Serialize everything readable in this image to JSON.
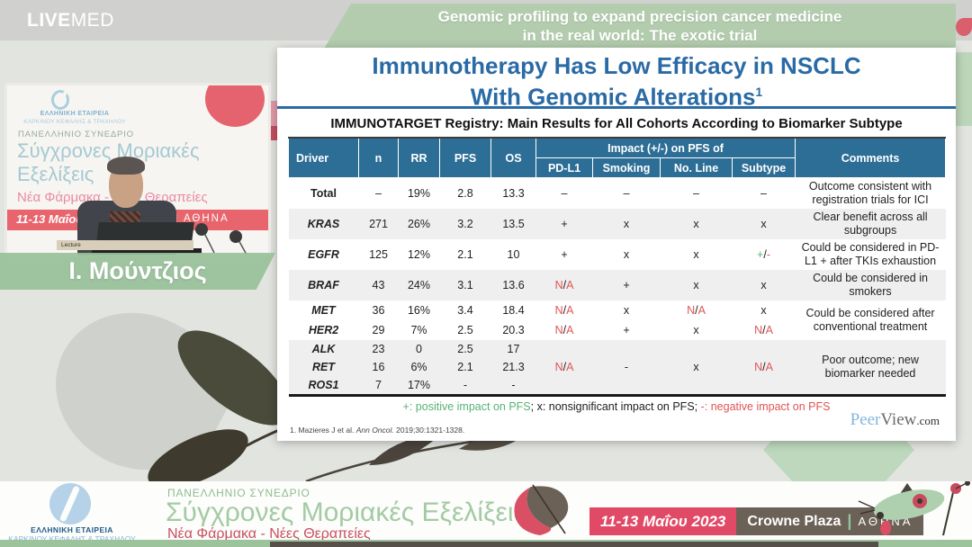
{
  "brand": {
    "live": "LIVE",
    "med": "MED"
  },
  "banner": {
    "line1": "Genomic profiling to expand precision cancer medicine",
    "line2": "in the real world: The exotic trial"
  },
  "video": {
    "speaker_name": "Ι. Μούντζιος",
    "backdrop": {
      "org_line1": "ΕΛΛΗΝΙΚΗ ΕΤΑΙΡΕΙΑ",
      "org_line2": "ΚΑΡΚΙΝΟΥ ΚΕΦΑΛΗΣ & ΤΡΑΧΗΛΟΥ",
      "congress": "ΠΑΝΕΛΛΗΝΙΟ ΣΥΝΕΔΡΙΟ",
      "title_line1": "Σύγχρονες Μοριακές",
      "title_line2": "Εξελίξεις",
      "subtitle": "Νέα Φάρμακα - Νέες Θεραπείες",
      "date": "11-13 Μαΐου 202",
      "divider": "|",
      "city": "ΑΘΗΝΑ",
      "podium_label": "Lecture"
    }
  },
  "slide": {
    "title_line1": "Immunotherapy Has Low Efficacy in NSCLC",
    "title_line2": "With Genomic Alterations",
    "title_sup": "1",
    "table_title": "IMMUNOTARGET Registry: Main Results for All Cohorts According to Biomarker Subtype",
    "table": {
      "col_headers": [
        "Driver",
        "n",
        "RR",
        "PFS",
        "OS"
      ],
      "impact_group_header": "Impact (+/-) on PFS of",
      "impact_headers": [
        "PD-L1",
        "Smoking",
        "No. Line",
        "Subtype"
      ],
      "comments_header": "Comments",
      "rows": [
        {
          "driver": "Total",
          "style": "total",
          "bg": "w",
          "size": "lg",
          "n": "–",
          "rr": "19%",
          "pfs": "2.8",
          "os": "13.3",
          "impact": [
            "–",
            "–",
            "–",
            "–"
          ],
          "comment": "Outcome consistent with registration trials for ICI",
          "comment_rows": 1
        },
        {
          "driver": "KRAS",
          "style": "gene",
          "bg": "g",
          "size": "lg",
          "n": "271",
          "rr": "26%",
          "pfs": "3.2",
          "os": "13.5",
          "impact": [
            "+",
            "x",
            "x",
            "x"
          ],
          "comment": "Clear benefit across all subgroups",
          "comment_rows": 1
        },
        {
          "driver": "EGFR",
          "style": "gene",
          "bg": "w",
          "size": "lg",
          "n": "125",
          "rr": "12%",
          "pfs": "2.1",
          "os": "10",
          "impact": [
            "+",
            "x",
            "x",
            "+/-"
          ],
          "comment": "Could be considered in PD-L1 + after TKIs exhaustion",
          "comment_rows": 1
        },
        {
          "driver": "BRAF",
          "style": "gene",
          "bg": "g",
          "size": "lg",
          "n": "43",
          "rr": "24%",
          "pfs": "3.1",
          "os": "13.6",
          "impact": [
            "N/A",
            "+",
            "x",
            "x"
          ],
          "comment": "Could be considered in smokers",
          "comment_rows": 1
        },
        {
          "driver": "MET",
          "style": "gene",
          "bg": "w",
          "size": "md",
          "n": "36",
          "rr": "16%",
          "pfs": "3.4",
          "os": "18.4",
          "impact": [
            "N/A",
            "x",
            "N/A",
            "x"
          ],
          "comment": "Could be considered after conventional treatment",
          "comment_rows": 2
        },
        {
          "driver": "HER2",
          "style": "gene",
          "bg": "w",
          "size": "md",
          "n": "29",
          "rr": "7%",
          "pfs": "2.5",
          "os": "20.3",
          "impact": [
            "N/A",
            "+",
            "x",
            "N/A"
          ]
        },
        {
          "driver": "ALK",
          "style": "gene",
          "bg": "g",
          "size": "sm",
          "n": "23",
          "rr": "0",
          "pfs": "2.5",
          "os": "17",
          "impact": [
            "",
            "",
            "",
            ""
          ],
          "comment": "Poor outcome; new biomarker needed",
          "comment_rows": 3
        },
        {
          "driver": "RET",
          "style": "gene",
          "bg": "g",
          "size": "sm",
          "n": "16",
          "rr": "6%",
          "pfs": "2.1",
          "os": "21.3",
          "impact": [
            "N/A",
            "-",
            "x",
            "N/A"
          ]
        },
        {
          "driver": "ROS1",
          "style": "gene",
          "bg": "g",
          "size": "sm",
          "n": "7",
          "rr": "17%",
          "pfs": "-",
          "os": "-",
          "impact": [
            "",
            "",
            "",
            ""
          ]
        }
      ]
    },
    "legend": [
      {
        "text": "+: positive impact on PFS",
        "color": "pos"
      },
      {
        "text": "; x: nonsignificant impact on PFS; ",
        "color": "plain"
      },
      {
        "text": "-: negative impact on PFS",
        "color": "neg"
      }
    ],
    "footnote": {
      "prefix": "1. Mazieres J et al. ",
      "journal": "Ann Oncol.",
      "suffix": " 2019;30:1321-1328."
    },
    "peerview": {
      "peer": "Peer",
      "view": "View",
      "com": ".com"
    }
  },
  "footer": {
    "org_line1": "ΕΛΛΗΝΙΚΗ ΕΤΑΙΡΕΙΑ",
    "org_line2": "ΚΑΡΚΙΝΟΥ ΚΕΦΑΛΗΣ & ΤΡΑΧΗΛΟΥ",
    "congress": "ΠΑΝΕΛΛΗΝΙΟ ΣΥΝΕΔΡΙΟ",
    "title": "Σύγχρονες Μοριακές Εξελίξεις",
    "subtitle": "Νέα Φάρμακα - Νέες Θεραπείες",
    "date": "11-13 Μαΐου 2023",
    "venue": "Crowne Plaza",
    "divider": "|",
    "city": "ΑΘΗΝΑ"
  },
  "colors": {
    "table_header_bg": "#2d6e96",
    "slide_title_blue": "#2a6aa5",
    "positive_green": "#57b276",
    "negative_red": "#e05555",
    "banner_green": "#b3ccae",
    "name_band_green": "#98c099",
    "footer_date_pink": "#e04a66",
    "footer_venue_dark": "#6b6156",
    "footer_green_text": "#a3cba3",
    "footer_red_text": "#c8505f"
  }
}
